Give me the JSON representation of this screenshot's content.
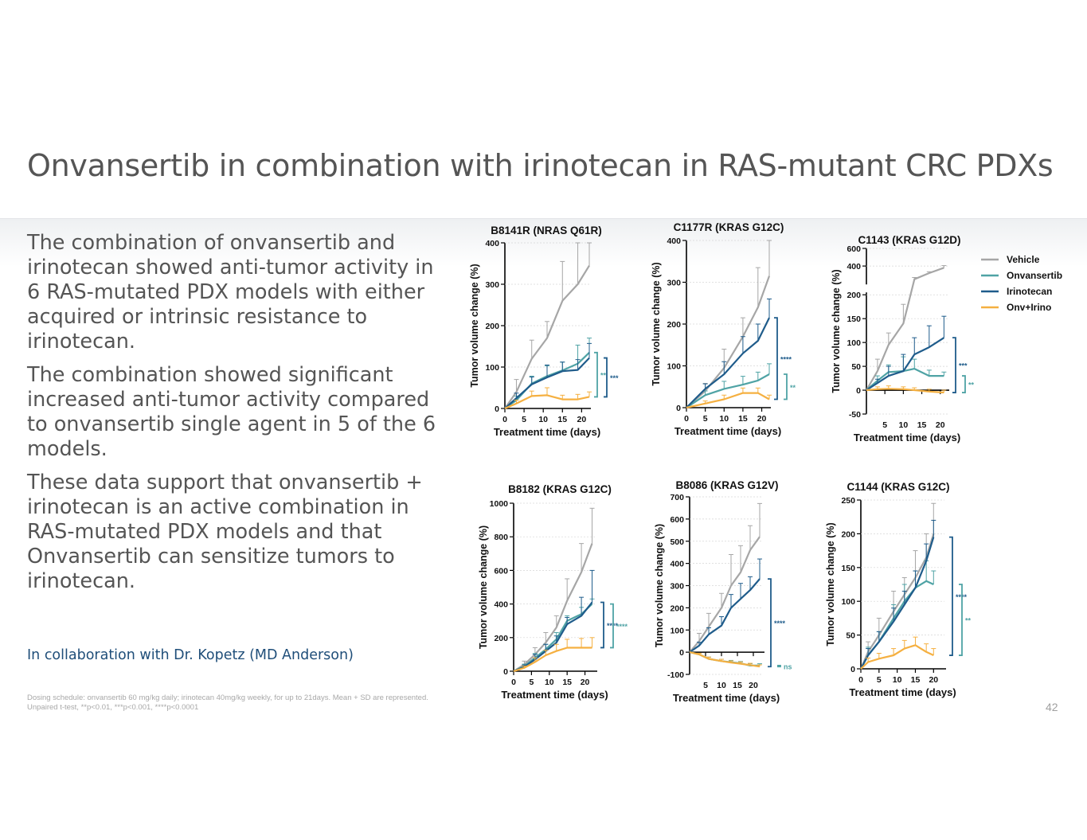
{
  "slide": {
    "title": "Onvansertib in combination with irinotecan in RAS-mutant CRC PDXs",
    "bullets": [
      "The combination of onvansertib and irinotecan showed anti-tumor activity in 6 RAS-mutated PDX models with either acquired or intrinsic resistance to irinotecan.",
      "The combination showed significant increased anti-tumor activity compared to onvansertib single agent in 5 of the 6 models.",
      "These data support that onvansertib + irinotecan is an active combination in RAS-mutated PDX models and that Onvansertib can sensitize tumors to irinotecan."
    ],
    "collaboration": "In collaboration with Dr. Kopetz (MD Anderson)",
    "footnote_1": "Dosing schedule: onvansertib 60 mg/kg daily; irinotecan 40mg/kg weekly, for up to 21days. Mean + SD are represented.",
    "footnote_2": "Unpaired t-test,  **p<0.01, ***p<0.001, ****p<0.0001",
    "page_number": "42"
  },
  "legend": [
    {
      "name": "Vehicle",
      "color": "#a6a6a6"
    },
    {
      "name": "Onvansertib",
      "color": "#4fa3a5"
    },
    {
      "name": "Irinotecan",
      "color": "#1f5c8b"
    },
    {
      "name": "Onv+Irino",
      "color": "#f5b041"
    }
  ],
  "chart_data": [
    {
      "type": "line",
      "title": "B8141R (NRAS Q61R)",
      "xlabel": "Treatment time (days)",
      "ylabel": "Tumor volume change (%)",
      "xlim": [
        0,
        22
      ],
      "ylim": [
        0,
        400
      ],
      "xticks": [
        0,
        5,
        10,
        15,
        20
      ],
      "yticks": [
        0,
        100,
        200,
        300,
        400
      ],
      "x": [
        0,
        3,
        7,
        11,
        15,
        19,
        22
      ],
      "series": [
        {
          "name": "Vehicle",
          "values": [
            0,
            40,
            120,
            170,
            260,
            300,
            345
          ],
          "sd": [
            0,
            30,
            45,
            40,
            95,
            100,
            60
          ]
        },
        {
          "name": "Onvansertib",
          "values": [
            0,
            20,
            60,
            78,
            92,
            108,
            135
          ],
          "sd": [
            0,
            10,
            18,
            25,
            20,
            45,
            35
          ]
        },
        {
          "name": "Irinotecan",
          "values": [
            0,
            25,
            58,
            75,
            90,
            93,
            122
          ],
          "sd": [
            0,
            12,
            18,
            30,
            22,
            25,
            35
          ]
        },
        {
          "name": "Onv+Irino",
          "values": [
            0,
            12,
            30,
            32,
            22,
            22,
            28
          ],
          "sd": [
            0,
            8,
            12,
            18,
            10,
            12,
            12
          ]
        }
      ],
      "significance": [
        {
          "series": "Onvansertib",
          "label": "**"
        },
        {
          "series": "Irinotecan",
          "label": "***"
        }
      ]
    },
    {
      "type": "line",
      "title": "C1177R (KRAS G12C)",
      "xlabel": "Treatment time (days)",
      "ylabel": "Tumor volume change (%)",
      "xlim": [
        0,
        22
      ],
      "ylim": [
        0,
        400
      ],
      "xticks": [
        0,
        5,
        10,
        15,
        20
      ],
      "yticks": [
        0,
        100,
        200,
        300,
        400
      ],
      "x": [
        0,
        5,
        10,
        15,
        19,
        22
      ],
      "series": [
        {
          "name": "Vehicle",
          "values": [
            0,
            40,
            95,
            170,
            240,
            315
          ],
          "sd": [
            0,
            18,
            45,
            45,
            95,
            85
          ]
        },
        {
          "name": "Onvansertib",
          "values": [
            0,
            30,
            45,
            55,
            65,
            80
          ],
          "sd": [
            0,
            10,
            18,
            20,
            20,
            25
          ]
        },
        {
          "name": "Irinotecan",
          "values": [
            0,
            45,
            80,
            130,
            160,
            215
          ],
          "sd": [
            0,
            12,
            30,
            40,
            40,
            45
          ]
        },
        {
          "name": "Onv+Irino",
          "values": [
            0,
            10,
            20,
            35,
            35,
            20
          ],
          "sd": [
            0,
            6,
            10,
            12,
            12,
            10
          ]
        }
      ],
      "significance": [
        {
          "series": "Irinotecan",
          "label": "****"
        },
        {
          "series": "Onvansertib",
          "label": "**"
        }
      ]
    },
    {
      "type": "line",
      "title": "C1143 (KRAS G12D)",
      "xlabel": "Treatment time (days)",
      "ylabel": "Tumor volume change (%)",
      "xlim": [
        0,
        22
      ],
      "ylim": [
        -50,
        600
      ],
      "axis_break": [
        200,
        200
      ],
      "xticks": [
        5,
        10,
        15,
        20
      ],
      "yticks": [
        -50,
        0,
        50,
        100,
        150,
        200,
        400,
        600
      ],
      "x": [
        0,
        3,
        6,
        10,
        13,
        17,
        21
      ],
      "series": [
        {
          "name": "Vehicle",
          "values": [
            0,
            40,
            95,
            140,
            250,
            320,
            380
          ],
          "sd": [
            0,
            25,
            25,
            40,
            20,
            15,
            25
          ]
        },
        {
          "name": "Onvansertib",
          "values": [
            0,
            20,
            38,
            40,
            45,
            30,
            30
          ],
          "sd": [
            0,
            10,
            15,
            30,
            20,
            12,
            8
          ]
        },
        {
          "name": "Irinotecan",
          "values": [
            0,
            15,
            30,
            40,
            75,
            90,
            110
          ],
          "sd": [
            0,
            8,
            20,
            35,
            35,
            45,
            45
          ]
        },
        {
          "name": "Onv+Irino",
          "values": [
            0,
            2,
            3,
            2,
            0,
            -3,
            -5
          ],
          "sd": [
            0,
            5,
            6,
            5,
            5,
            5,
            5
          ]
        }
      ],
      "significance": [
        {
          "series": "Irinotecan",
          "label": "***"
        },
        {
          "series": "Onvansertib",
          "label": "**"
        }
      ]
    },
    {
      "type": "line",
      "title": "B8182 (KRAS G12C)",
      "xlabel": "Treatment time (days)",
      "ylabel": "Tumor volume change (%)",
      "xlim": [
        0,
        23
      ],
      "ylim": [
        0,
        1000
      ],
      "xticks": [
        0,
        5,
        10,
        15,
        20
      ],
      "yticks": [
        0,
        200,
        400,
        600,
        800,
        1000
      ],
      "x": [
        0,
        3,
        6,
        9,
        12,
        15,
        19,
        22
      ],
      "series": [
        {
          "name": "Vehicle",
          "values": [
            0,
            40,
            100,
            170,
            260,
            420,
            590,
            760
          ],
          "sd": [
            0,
            20,
            40,
            60,
            70,
            130,
            170,
            210
          ]
        },
        {
          "name": "Onvansertib",
          "values": [
            0,
            30,
            80,
            130,
            190,
            300,
            340,
            400
          ],
          "sd": [
            0,
            12,
            25,
            30,
            40,
            30,
            40,
            30
          ]
        },
        {
          "name": "Irinotecan",
          "values": [
            0,
            25,
            70,
            120,
            170,
            280,
            330,
            410
          ],
          "sd": [
            0,
            12,
            30,
            40,
            40,
            40,
            110,
            190
          ]
        },
        {
          "name": "Onv+Irino",
          "values": [
            0,
            20,
            55,
            95,
            120,
            140,
            140,
            140
          ],
          "sd": [
            0,
            10,
            25,
            30,
            40,
            50,
            55,
            60
          ]
        }
      ],
      "significance": [
        {
          "series": "Irinotecan",
          "label": "****"
        },
        {
          "series": "Onvansertib",
          "label": "****"
        }
      ]
    },
    {
      "type": "line",
      "title": "B8086 (KRAS G12V)",
      "xlabel": "Treatment time (days)",
      "ylabel": "Tumor volume change (%)",
      "xlim": [
        0,
        23
      ],
      "ylim": [
        -100,
        700
      ],
      "xticks": [
        5,
        10,
        15,
        20
      ],
      "yticks": [
        -100,
        0,
        100,
        200,
        300,
        400,
        500,
        600,
        700
      ],
      "x": [
        0,
        3,
        6,
        10,
        13,
        16,
        19,
        22
      ],
      "series": [
        {
          "name": "Vehicle",
          "values": [
            0,
            50,
            115,
            200,
            300,
            360,
            460,
            520
          ],
          "sd": [
            0,
            35,
            60,
            65,
            140,
            120,
            110,
            150
          ]
        },
        {
          "name": "Onvansertib",
          "values": [
            0,
            -10,
            -30,
            -40,
            -45,
            -50,
            -60,
            -60
          ],
          "sd": [
            0,
            5,
            8,
            8,
            8,
            8,
            8,
            8
          ]
        },
        {
          "name": "Irinotecan",
          "values": [
            0,
            30,
            80,
            120,
            200,
            240,
            280,
            330
          ],
          "sd": [
            0,
            15,
            30,
            40,
            60,
            70,
            60,
            90
          ]
        },
        {
          "name": "Onv+Irino",
          "values": [
            0,
            -10,
            -30,
            -40,
            -47,
            -52,
            -58,
            -65
          ],
          "sd": [
            0,
            5,
            8,
            8,
            8,
            8,
            8,
            8
          ]
        }
      ],
      "significance": [
        {
          "series": "Irinotecan",
          "label": "****"
        },
        {
          "series": "Onvansertib",
          "label": "ns"
        }
      ]
    },
    {
      "type": "line",
      "title": "C1144 (KRAS G12C)",
      "xlabel": "Treatment time (days)",
      "ylabel": "Tumor volume change (%)",
      "xlim": [
        0,
        23
      ],
      "ylim": [
        0,
        250
      ],
      "xticks": [
        0,
        5,
        10,
        15,
        20
      ],
      "yticks": [
        0,
        50,
        100,
        150,
        200,
        250
      ],
      "x": [
        0,
        2,
        5,
        9,
        12,
        15,
        18,
        20
      ],
      "series": [
        {
          "name": "Vehicle",
          "values": [
            0,
            25,
            50,
            85,
            110,
            135,
            165,
            200
          ],
          "sd": [
            0,
            15,
            25,
            30,
            25,
            40,
            35,
            45
          ]
        },
        {
          "name": "Onvansertib",
          "values": [
            0,
            20,
            40,
            75,
            100,
            120,
            130,
            125
          ],
          "sd": [
            0,
            12,
            15,
            20,
            25,
            25,
            30,
            20
          ]
        },
        {
          "name": "Irinotecan",
          "values": [
            0,
            20,
            40,
            70,
            95,
            120,
            160,
            195
          ],
          "sd": [
            0,
            10,
            15,
            20,
            20,
            25,
            25,
            25
          ]
        },
        {
          "name": "Onv+Irino",
          "values": [
            0,
            10,
            15,
            20,
            30,
            35,
            25,
            20
          ],
          "sd": [
            0,
            6,
            8,
            10,
            12,
            12,
            12,
            10
          ]
        }
      ],
      "significance": [
        {
          "series": "Irinotecan",
          "label": "****"
        },
        {
          "series": "Onvansertib",
          "label": "**"
        }
      ]
    }
  ]
}
